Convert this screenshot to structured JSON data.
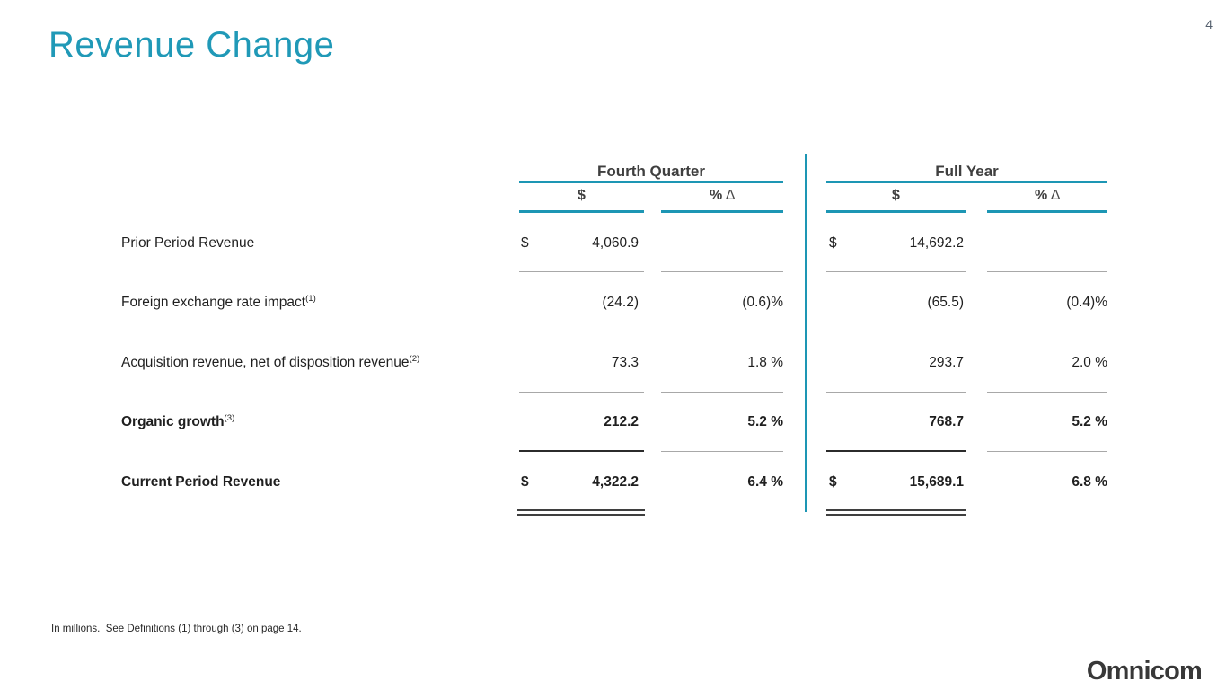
{
  "page": {
    "title": "Revenue Change",
    "number": "4"
  },
  "colors": {
    "accent_teal": "#1D96B4",
    "header_text": "#3F3F3F",
    "body_text": "#1F1F1F",
    "separator_gray": "#A8A8A8",
    "separator_dark": "#2B2B2B",
    "logo_text": "#383838",
    "page_number": "#55606E"
  },
  "table": {
    "groups": [
      {
        "label": "Fourth Quarter"
      },
      {
        "label": "Full Year"
      }
    ],
    "subheaders": {
      "usd": "$",
      "pct": "%",
      "delta": "∆"
    },
    "rows": [
      {
        "label": "Prior Period Revenue",
        "sup": "",
        "q4_sign": "$",
        "q4_usd": "4,060.9",
        "q4_pct": "",
        "fy_sign": "$",
        "fy_usd": "14,692.2",
        "fy_pct": ""
      },
      {
        "label": "Foreign exchange rate impact",
        "sup": "(1)",
        "q4_sign": "",
        "q4_usd": "(24.2)",
        "q4_pct": "(0.6)%",
        "fy_sign": "",
        "fy_usd": "(65.5)",
        "fy_pct": "(0.4)%"
      },
      {
        "label": "Acquisition revenue, net of disposition revenue",
        "sup": "(2)",
        "q4_sign": "",
        "q4_usd": "73.3",
        "q4_pct": "1.8 %",
        "fy_sign": "",
        "fy_usd": "293.7",
        "fy_pct": "2.0 %"
      },
      {
        "label": "Organic growth",
        "sup": "(3)",
        "q4_sign": "",
        "q4_usd": "212.2",
        "q4_pct": "5.2 %",
        "fy_sign": "",
        "fy_usd": "768.7",
        "fy_pct": "5.2 %"
      },
      {
        "label": "Current Period Revenue",
        "sup": "",
        "q4_sign": "$",
        "q4_usd": "4,322.2",
        "q4_pct": "6.4 %",
        "fy_sign": "$",
        "fy_usd": "15,689.1",
        "fy_pct": "6.8 %"
      }
    ]
  },
  "footnote": "In millions.  See Definitions (1) through (3) on page 14.",
  "logo": "Omnicom"
}
